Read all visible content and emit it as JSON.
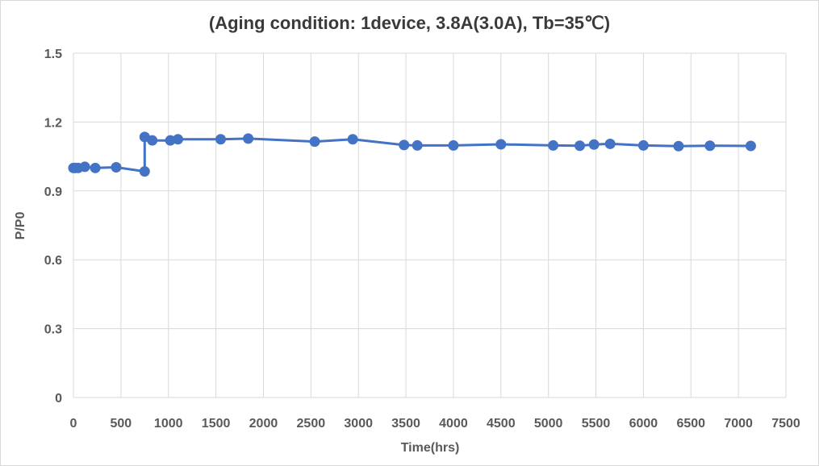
{
  "chart_data": {
    "type": "line",
    "title": "(Aging condition:  1device, 3.8A(3.0A), Tb=35℃)",
    "xlabel": "Time(hrs)",
    "ylabel": "P/P0",
    "xlim": [
      0,
      7500
    ],
    "ylim": [
      0,
      1.5
    ],
    "xticks": [
      0,
      500,
      1000,
      1500,
      2000,
      2500,
      3000,
      3500,
      4000,
      4500,
      5000,
      5500,
      6000,
      6500,
      7000,
      7500
    ],
    "yticks": [
      0,
      0.3,
      0.6,
      0.9,
      1.2,
      1.5
    ],
    "ytick_labels": [
      "0",
      "0.3",
      "0.6",
      "0.9",
      "1.2",
      "1.5"
    ],
    "grid": true,
    "color": "#4472C4",
    "series": [
      {
        "x": [
          0,
          20,
          50,
          120,
          230,
          450,
          750,
          750,
          830,
          1020,
          1100,
          1550,
          1840,
          2540,
          2940,
          3480,
          3620,
          4000,
          4500,
          5050,
          5330,
          5480,
          5650,
          6000,
          6370,
          6700,
          7130
        ],
        "y": [
          1.0,
          1.0,
          1.0,
          1.005,
          1.0,
          1.003,
          0.985,
          1.135,
          1.12,
          1.12,
          1.125,
          1.125,
          1.128,
          1.115,
          1.125,
          1.1,
          1.098,
          1.098,
          1.103,
          1.098,
          1.097,
          1.102,
          1.105,
          1.098,
          1.095,
          1.097,
          1.096
        ]
      }
    ]
  }
}
